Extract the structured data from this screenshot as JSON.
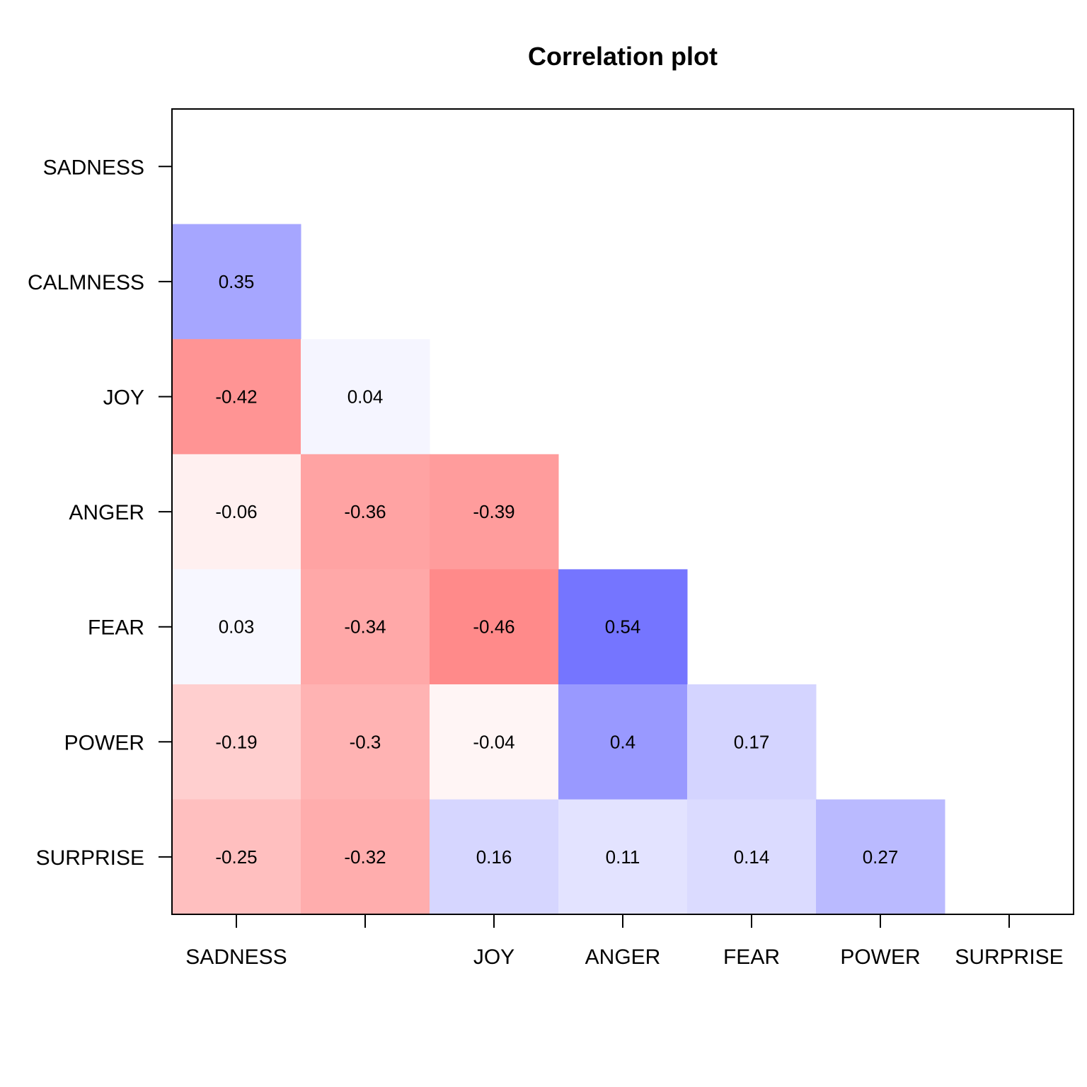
{
  "chart_data": {
    "type": "heatmap",
    "title": "Correlation plot",
    "row_labels": [
      "SADNESS",
      "CALMNESS",
      "JOY",
      "ANGER",
      "FEAR",
      "POWER",
      "SURPRISE"
    ],
    "col_labels": [
      "SADNESS",
      "",
      "JOY",
      "ANGER",
      "FEAR",
      "POWER",
      "SURPRISE"
    ],
    "matrix": [
      [
        null,
        null,
        null,
        null,
        null,
        null,
        null
      ],
      [
        0.35,
        null,
        null,
        null,
        null,
        null,
        null
      ],
      [
        -0.42,
        0.04,
        null,
        null,
        null,
        null,
        null
      ],
      [
        -0.06,
        -0.36,
        -0.39,
        null,
        null,
        null,
        null
      ],
      [
        0.03,
        -0.34,
        -0.46,
        0.54,
        null,
        null,
        null
      ],
      [
        -0.19,
        -0.3,
        -0.04,
        0.4,
        0.17,
        null,
        null
      ],
      [
        -0.25,
        -0.32,
        0.16,
        0.11,
        0.14,
        0.27,
        null
      ]
    ],
    "color_scale": {
      "negative": "#ff0000",
      "zero": "#ffffff",
      "positive": "#0000ff"
    }
  }
}
